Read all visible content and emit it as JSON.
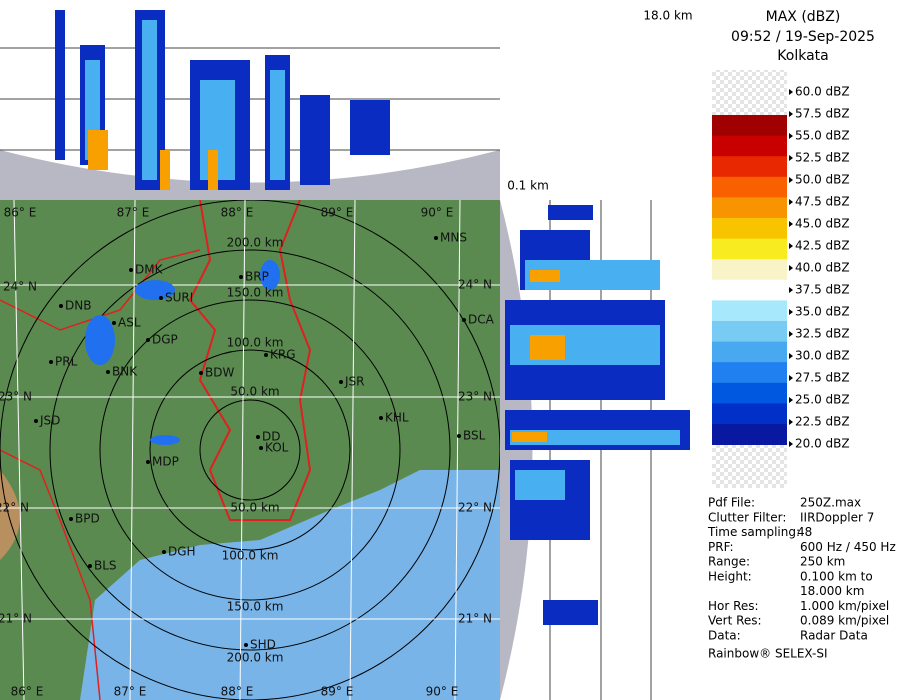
{
  "header": {
    "title": "MAX (dBZ)",
    "time": "09:52 / 19-Sep-2025",
    "site": "Kolkata"
  },
  "cross_section": {
    "top_height": "18.0 km",
    "bottom_height": "0.1 km"
  },
  "legend": {
    "labels": [
      "60.0 dBZ",
      "57.5 dBZ",
      "55.0 dBZ",
      "52.5 dBZ",
      "50.0 dBZ",
      "47.5 dBZ",
      "45.0 dBZ",
      "42.5 dBZ",
      "40.0 dBZ",
      "37.5 dBZ",
      "35.0 dBZ",
      "32.5 dBZ",
      "30.0 dBZ",
      "27.5 dBZ",
      "25.0 dBZ",
      "22.5 dBZ",
      "20.0 dBZ"
    ],
    "colors": [
      "#a00000",
      "#c80000",
      "#e82800",
      "#f86000",
      "#f89400",
      "#f8c400",
      "#f8ec20",
      "#f8f4c8",
      "#ffffff",
      "#a8e8fc",
      "#78ccf4",
      "#48a8f0",
      "#2080f0",
      "#0058e0",
      "#0030c8",
      "#0818a0"
    ]
  },
  "info": [
    {
      "label": "Pdf File:",
      "lines": [
        "250Z.max"
      ]
    },
    {
      "label": "Clutter Filter:",
      "lines": [
        "IIRDoppler 7"
      ]
    },
    {
      "label": "Time sampling:",
      "lines": [
        "48"
      ]
    },
    {
      "label": "PRF:",
      "lines": [
        "600 Hz / 450 Hz"
      ]
    },
    {
      "label": "Range:",
      "lines": [
        "250 km"
      ]
    },
    {
      "label": "Height:",
      "lines": [
        "0.100 km to",
        "18.000 km"
      ]
    },
    {
      "label": "Hor Res:",
      "lines": [
        "1.000 km/pixel"
      ]
    },
    {
      "label": "Vert Res:",
      "lines": [
        "0.089 km/pixel"
      ]
    },
    {
      "label": "Data:",
      "lines": [
        "Radar Data"
      ]
    }
  ],
  "footer": "Rainbow® SELEX-SI",
  "map": {
    "lon_top": [
      "86° E",
      "87° E",
      "88° E",
      "89° E",
      "90° E"
    ],
    "lon_bottom": [
      "86° E",
      "87° E",
      "88° E",
      "89° E",
      "90° E"
    ],
    "lat_right": [
      "24° N",
      "23° N",
      "22° N",
      "21° N"
    ],
    "lat_left": [
      "24° N",
      "23° N",
      "22° N",
      "21° N"
    ],
    "ranges_north": [
      "50.0 km",
      "100.0 km",
      "150.0 km",
      "200.0 km"
    ],
    "ranges_south": [
      "50.0 km",
      "100.0 km",
      "150.0 km",
      "200.0 km"
    ],
    "cities": [
      "MNS",
      "DCA",
      "JSR",
      "KHL",
      "BSL",
      "BRP",
      "DMK",
      "SURI",
      "DNB",
      "ASL",
      "DGP",
      "KRG",
      "BNK",
      "PRL",
      "BDW",
      "JSD",
      "DD",
      "KOL",
      "MDP",
      "BPD",
      "DGH",
      "BLS",
      "SHD"
    ]
  }
}
